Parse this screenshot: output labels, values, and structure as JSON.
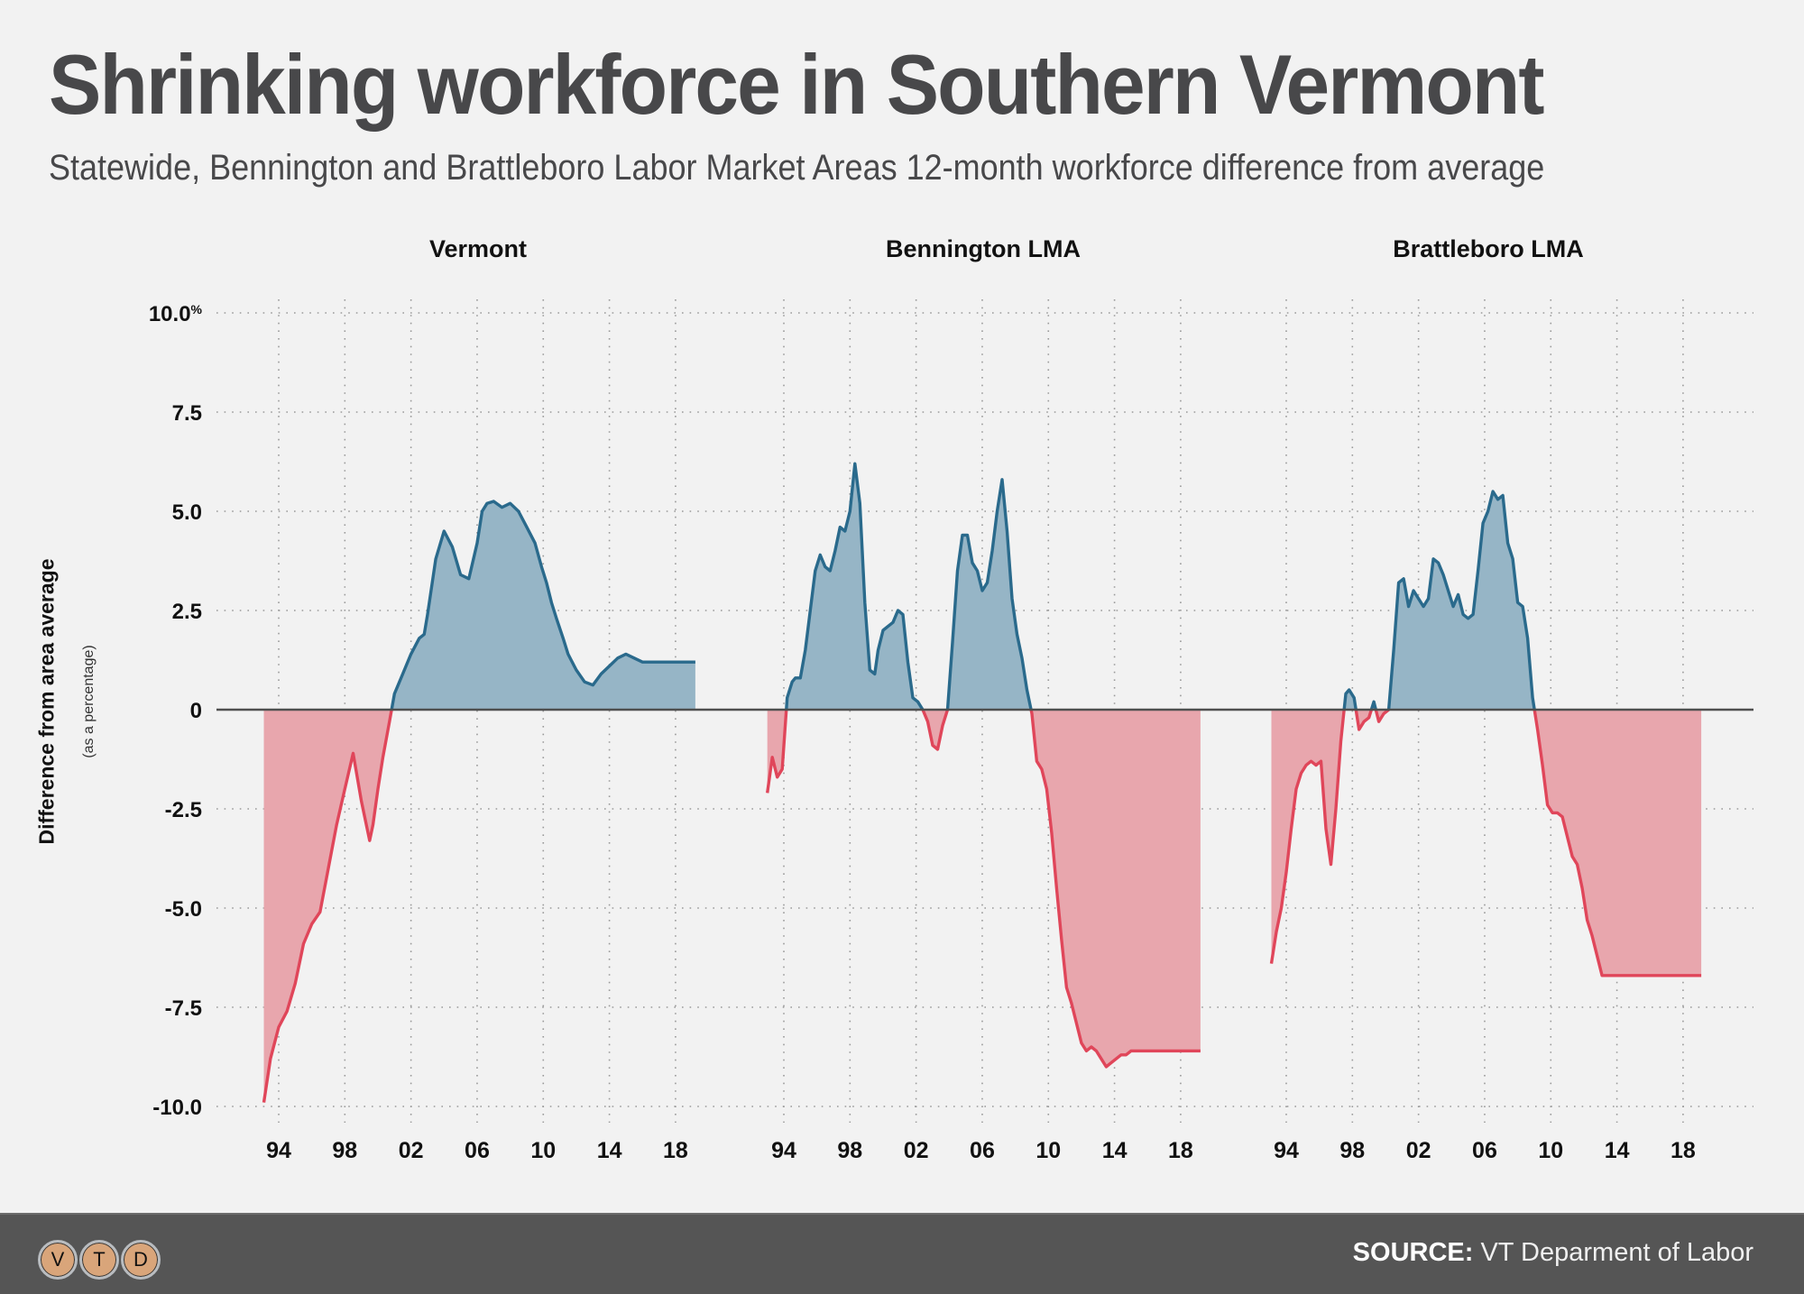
{
  "title": "Shrinking workforce in Southern Vermont",
  "subtitle": "Statewide, Bennington and Brattleboro Labor Market Areas 12-month workforce difference from average",
  "footer": {
    "source_label": "SOURCE:",
    "source_value": "VT Deparment of Labor",
    "logo_letters": [
      "V",
      "T",
      "D"
    ]
  },
  "colors": {
    "positive_line": "#2a6a8c",
    "positive_fill": "#96b5c6",
    "negative_line": "#e0465a",
    "negative_fill": "#e8a6ad",
    "background": "#f2f2f2",
    "footer": "#555555"
  },
  "chart_data": {
    "type": "area",
    "ylabel": "Difference from area average",
    "ylabel_sub": "(as a percentage)",
    "ylim": [
      -10,
      10
    ],
    "yticks": [
      10,
      7.5,
      5,
      2.5,
      0,
      -2.5,
      -5,
      -7.5,
      -10
    ],
    "ytick_labels": [
      "10.0",
      "7.5",
      "5.0",
      "2.5",
      "0",
      "-2.5",
      "-5.0",
      "-7.5",
      "-10.0"
    ],
    "ytick_unit": "%",
    "xticks": [
      1994,
      1998,
      2002,
      2006,
      2010,
      2014,
      2018
    ],
    "xtick_labels": [
      "94",
      "98",
      "02",
      "06",
      "10",
      "14",
      "18"
    ],
    "xlim": [
      1993,
      2019.2
    ],
    "grid": true,
    "panels": [
      {
        "title": "Vermont",
        "x": [
          1993.1,
          1993.5,
          1994,
          1994.5,
          1995,
          1995.5,
          1996,
          1996.5,
          1997,
          1997.5,
          1998,
          1998.5,
          1999,
          1999.5,
          1999.7,
          2000,
          2000.3,
          2000.7,
          2001,
          2001.5,
          2002,
          2002.5,
          2002.8,
          2003,
          2003.5,
          2004,
          2004.5,
          2005,
          2005.5,
          2006,
          2006.3,
          2006.6,
          2007,
          2007.5,
          2008,
          2008.5,
          2009,
          2009.5,
          2009.9,
          2010.2,
          2010.5,
          2010.8,
          2011.2,
          2011.5,
          2012,
          2012.5,
          2013,
          2013.5,
          2014,
          2014.5,
          2015,
          2015.5,
          2016,
          2016.5,
          2017,
          2017.5,
          2018,
          2018.5,
          2019,
          2019.2
        ],
        "y": [
          -9.9,
          -8.8,
          -8.0,
          -7.6,
          -6.9,
          -5.9,
          -5.4,
          -5.1,
          -4.0,
          -2.9,
          -2.0,
          -1.1,
          -2.3,
          -3.3,
          -2.9,
          -2.0,
          -1.2,
          -0.3,
          0.4,
          0.9,
          1.4,
          1.8,
          1.9,
          2.4,
          3.8,
          4.5,
          4.1,
          3.4,
          3.3,
          4.2,
          5.0,
          5.2,
          5.25,
          5.1,
          5.2,
          5.0,
          4.6,
          4.2,
          3.6,
          3.2,
          2.7,
          2.3,
          1.8,
          1.4,
          1.0,
          0.7,
          0.62,
          0.9,
          1.1,
          1.3,
          1.4,
          1.3,
          1.2,
          1.2,
          1.2,
          1.2,
          1.2,
          1.2,
          1.2,
          1.2
        ]
      },
      {
        "title": "Bennington LMA",
        "x": [
          1993,
          1993.3,
          1993.6,
          1993.9,
          1994.2,
          1994.5,
          1994.7,
          1995,
          1995.3,
          1995.6,
          1995.9,
          1996.2,
          1996.5,
          1996.8,
          1997.1,
          1997.4,
          1997.7,
          1998,
          1998.3,
          1998.6,
          1998.9,
          1999.2,
          1999.5,
          1999.7,
          2000,
          2000.3,
          2000.6,
          2000.9,
          2001.2,
          2001.5,
          2001.8,
          2002.1,
          2002.4,
          2002.7,
          2003,
          2003.3,
          2003.6,
          2003.9,
          2004.2,
          2004.5,
          2004.8,
          2005.1,
          2005.4,
          2005.7,
          2006,
          2006.3,
          2006.6,
          2006.9,
          2007.2,
          2007.5,
          2007.8,
          2008.1,
          2008.4,
          2008.7,
          2009,
          2009.3,
          2009.6,
          2009.9,
          2010.2,
          2010.5,
          2010.8,
          2011.1,
          2011.4,
          2011.7,
          2012,
          2012.3,
          2012.6,
          2012.9,
          2013.2,
          2013.5,
          2013.8,
          2014.1,
          2014.4,
          2014.7,
          2015,
          2015.3,
          2015.6,
          2015.9,
          2016.2,
          2016.5,
          2016.8,
          2017.1,
          2017.4,
          2017.7,
          2018,
          2018.3,
          2018.6,
          2018.9,
          2019.2
        ],
        "y": [
          -2.1,
          -1.2,
          -1.7,
          -1.5,
          0.3,
          0.7,
          0.8,
          0.8,
          1.5,
          2.5,
          3.5,
          3.9,
          3.6,
          3.5,
          4.0,
          4.6,
          4.5,
          5.0,
          6.2,
          5.2,
          2.7,
          1.0,
          0.9,
          1.5,
          2.0,
          2.1,
          2.2,
          2.5,
          2.4,
          1.2,
          0.3,
          0.2,
          0.0,
          -0.3,
          -0.9,
          -1.0,
          -0.4,
          0.0,
          1.7,
          3.5,
          4.4,
          4.4,
          3.7,
          3.5,
          3.0,
          3.2,
          4.0,
          5.0,
          5.8,
          4.5,
          2.8,
          1.9,
          1.3,
          0.5,
          -0.1,
          -1.3,
          -1.5,
          -2.0,
          -3.1,
          -4.5,
          -5.8,
          -7.0,
          -7.4,
          -7.9,
          -8.4,
          -8.6,
          -8.5,
          -8.6,
          -8.8,
          -9.0,
          -8.9,
          -8.8,
          -8.7,
          -8.7,
          -8.6,
          -8.6,
          -8.6,
          -8.6,
          -8.6,
          -8.6,
          -8.6,
          -8.6,
          -8.6,
          -8.6,
          -8.6,
          -8.6,
          -8.6,
          -8.6,
          -8.6
        ]
      },
      {
        "title": "Brattleboro LMA",
        "x": [
          1993.1,
          1993.4,
          1993.7,
          1994,
          1994.3,
          1994.6,
          1994.9,
          1995.2,
          1995.5,
          1995.8,
          1996.1,
          1996.4,
          1996.7,
          1997,
          1997.3,
          1997.6,
          1997.8,
          1998.1,
          1998.4,
          1998.7,
          1999,
          1999.3,
          1999.6,
          1999.9,
          2000.2,
          2000.5,
          2000.8,
          2001.1,
          2001.4,
          2001.7,
          2002,
          2002.3,
          2002.6,
          2002.9,
          2003.2,
          2003.5,
          2003.8,
          2004.1,
          2004.4,
          2004.7,
          2005,
          2005.3,
          2005.6,
          2005.9,
          2006.2,
          2006.5,
          2006.8,
          2007.1,
          2007.4,
          2007.7,
          2008,
          2008.3,
          2008.6,
          2008.9,
          2009.2,
          2009.5,
          2009.8,
          2010.1,
          2010.4,
          2010.7,
          2011,
          2011.3,
          2011.6,
          2011.9,
          2012.2,
          2012.5,
          2012.8,
          2013.1,
          2013.4,
          2013.7,
          2014,
          2014.3,
          2014.6,
          2014.9,
          2015.2,
          2015.5,
          2015.8,
          2016.1,
          2016.4,
          2016.7,
          2017,
          2017.3,
          2017.6,
          2017.9,
          2018.2,
          2018.5,
          2018.8,
          2019.1
        ],
        "y": [
          -6.4,
          -5.6,
          -5.0,
          -4.1,
          -3.0,
          -2.0,
          -1.6,
          -1.4,
          -1.3,
          -1.4,
          -1.3,
          -3.0,
          -3.9,
          -2.5,
          -0.8,
          0.4,
          0.5,
          0.3,
          -0.5,
          -0.3,
          -0.2,
          0.2,
          -0.3,
          -0.1,
          0.0,
          1.5,
          3.2,
          3.3,
          2.6,
          3.0,
          2.8,
          2.6,
          2.8,
          3.8,
          3.7,
          3.4,
          3.0,
          2.6,
          2.9,
          2.4,
          2.3,
          2.4,
          3.5,
          4.7,
          5.0,
          5.5,
          5.3,
          5.4,
          4.2,
          3.8,
          2.7,
          2.6,
          1.8,
          0.3,
          -0.5,
          -1.4,
          -2.4,
          -2.6,
          -2.6,
          -2.7,
          -3.2,
          -3.7,
          -3.9,
          -4.5,
          -5.3,
          -5.7,
          -6.2,
          -6.7,
          -6.7,
          -6.7,
          -6.7,
          -6.7,
          -6.7,
          -6.7,
          -6.7,
          -6.7,
          -6.7,
          -6.7,
          -6.7,
          -6.7,
          -6.7,
          -6.7,
          -6.7,
          -6.7,
          -6.7,
          -6.7,
          -6.7,
          -6.7
        ]
      }
    ]
  }
}
